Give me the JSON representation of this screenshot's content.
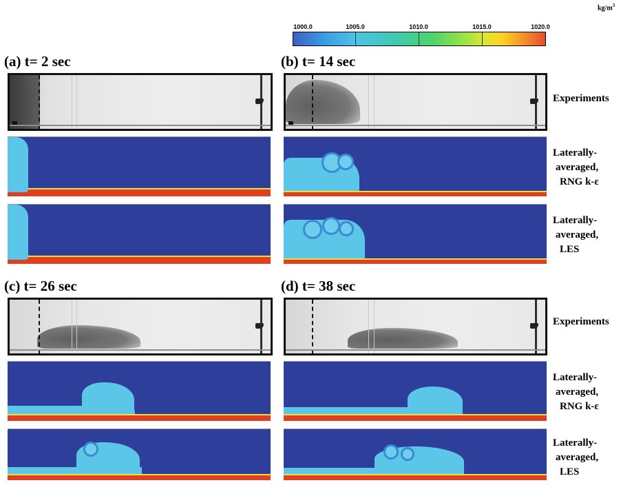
{
  "colorbar": {
    "unit_base": "kg/m",
    "unit_exp": "3",
    "ticks": [
      "1000.0",
      "1005.0",
      "1010.0",
      "1015.0",
      "1020.0"
    ],
    "range": [
      1000,
      1020
    ]
  },
  "panels": [
    {
      "id": "a",
      "title": "(a) t= 2 sec"
    },
    {
      "id": "b",
      "title": "(b) t= 14 sec"
    },
    {
      "id": "c",
      "title": "(c) t= 26 sec"
    },
    {
      "id": "d",
      "title": "(d) t= 38 sec"
    }
  ],
  "row_labels": {
    "experiments": "Experiments",
    "rng_1": "Laterally-",
    "rng_2": "averaged,",
    "rng_3": "RNG k-ε",
    "les_1": "Laterally-",
    "les_2": "averaged,",
    "les_3": "LES"
  }
}
